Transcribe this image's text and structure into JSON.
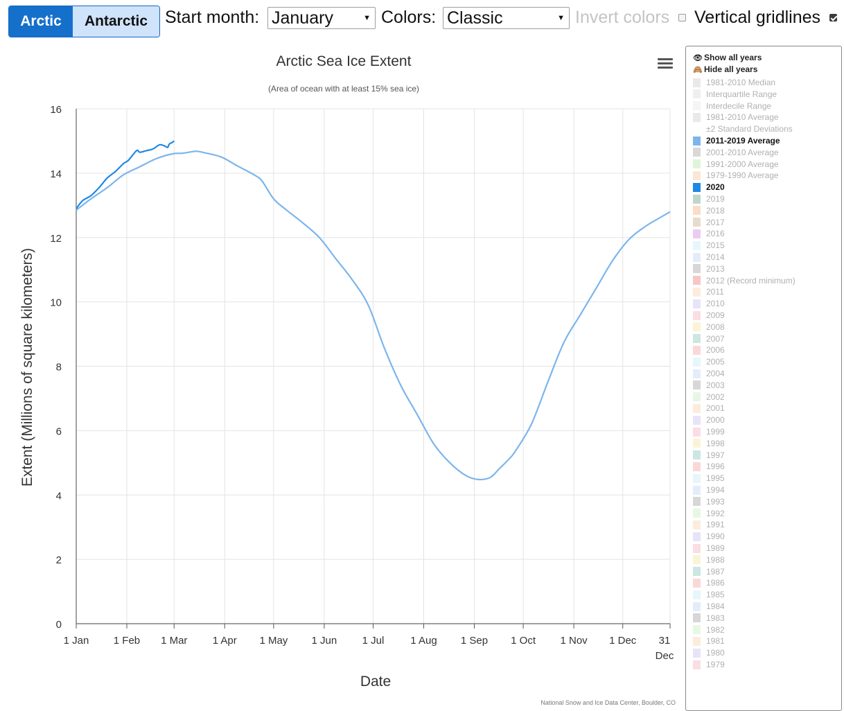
{
  "toolbar": {
    "hemispheres": [
      "Arctic",
      "Antarctic"
    ],
    "selected_hemisphere": "Arctic",
    "start_month_label": "Start month:",
    "start_month_value": "January",
    "colors_label": "Colors:",
    "colors_value": "Classic",
    "invert_colors_label": "Invert colors",
    "invert_colors_checked": false,
    "vertical_gridlines_label": "Vertical gridlines",
    "vertical_gridlines_checked": true
  },
  "colors": {
    "accent": "#1570cc",
    "series_2020": "#1e88e5",
    "series_average": "#7cb5ec",
    "grid": "#e3e3e3"
  },
  "chart_data": {
    "type": "line",
    "title": "Arctic Sea Ice Extent",
    "subtitle": "(Area of ocean with at least 15% sea ice)",
    "xlabel": "Date",
    "ylabel": "Extent (Millions of square kilometers)",
    "ylim": [
      0,
      16
    ],
    "yticks": [
      0,
      2,
      4,
      6,
      8,
      10,
      12,
      14,
      16
    ],
    "xlim": [
      1,
      365
    ],
    "xticks": [
      {
        "day": 1,
        "label": "1 Jan"
      },
      {
        "day": 32,
        "label": "1 Feb"
      },
      {
        "day": 61,
        "label": "1 Mar"
      },
      {
        "day": 92,
        "label": "1 Apr"
      },
      {
        "day": 122,
        "label": "1 May"
      },
      {
        "day": 153,
        "label": "1 Jun"
      },
      {
        "day": 183,
        "label": "1 Jul"
      },
      {
        "day": 214,
        "label": "1 Aug"
      },
      {
        "day": 245,
        "label": "1 Sep"
      },
      {
        "day": 275,
        "label": "1 Oct"
      },
      {
        "day": 306,
        "label": "1 Nov"
      },
      {
        "day": 336,
        "label": "1 Dec"
      },
      {
        "day": 365,
        "label": "31 Dec"
      }
    ],
    "grid": "vertical and horizontal",
    "legend": "right",
    "series": [
      {
        "name": "2011-2019 Average",
        "color": "#7cb5ec",
        "x": [
          1,
          10,
          20,
          30,
          40,
          50,
          60,
          66,
          70,
          75,
          80,
          90,
          100,
          110,
          115,
          122,
          130,
          140,
          150,
          160,
          170,
          180,
          190,
          200,
          210,
          220,
          230,
          240,
          248,
          255,
          260,
          265,
          270,
          280,
          290,
          300,
          310,
          320,
          330,
          340,
          350,
          360,
          365
        ],
        "y": [
          12.85,
          13.2,
          13.55,
          13.95,
          14.2,
          14.45,
          14.6,
          14.62,
          14.65,
          14.68,
          14.63,
          14.5,
          14.22,
          13.95,
          13.75,
          13.2,
          12.85,
          12.45,
          12.0,
          11.35,
          10.7,
          9.9,
          8.55,
          7.4,
          6.5,
          5.6,
          5.0,
          4.6,
          4.48,
          4.55,
          4.8,
          5.05,
          5.35,
          6.2,
          7.5,
          8.75,
          9.6,
          10.45,
          11.3,
          11.95,
          12.35,
          12.65,
          12.8
        ]
      },
      {
        "name": "2020",
        "color": "#1e88e5",
        "x": [
          1,
          5,
          10,
          15,
          20,
          25,
          30,
          33,
          38,
          40,
          44,
          48,
          52,
          55,
          57,
          58,
          60,
          61
        ],
        "y": [
          12.9,
          13.15,
          13.3,
          13.55,
          13.85,
          14.05,
          14.3,
          14.4,
          14.7,
          14.65,
          14.7,
          14.75,
          14.88,
          14.85,
          14.8,
          14.9,
          14.96,
          15.0
        ]
      }
    ],
    "credit": "National Snow and Ice Data Center, Boulder, CO"
  },
  "legend": {
    "show_all_label": "Show all years",
    "hide_all_label": "Hide all years",
    "items": [
      {
        "label": "1981-2010 Median",
        "color": "#cfcfcf",
        "on": false
      },
      {
        "label": "Interquartile Range",
        "color": "#dcdcdc",
        "on": false
      },
      {
        "label": "Interdecile Range",
        "color": "#e8e8e8",
        "on": false
      },
      {
        "label": "1981-2010 Average",
        "color": "#cfcfcf",
        "on": false
      },
      {
        "label": "±2 Standard Deviations",
        "color": "#ffffff",
        "on": false
      },
      {
        "label": "2011-2019 Average",
        "color": "#7cb5ec",
        "on": true
      },
      {
        "label": "2001-2010 Average",
        "color": "#a9a9a9",
        "on": false
      },
      {
        "label": "1991-2000 Average",
        "color": "#b8e6b0",
        "on": false
      },
      {
        "label": "1979-1990 Average",
        "color": "#f8c9a0",
        "on": false
      },
      {
        "label": "2020",
        "color": "#1e88e5",
        "on": true
      },
      {
        "label": "2019",
        "color": "#6fa58c",
        "on": false
      },
      {
        "label": "2018",
        "color": "#f4b183",
        "on": false
      },
      {
        "label": "2017",
        "color": "#c9b18e",
        "on": false
      },
      {
        "label": "2016",
        "color": "#d58be0",
        "on": false
      },
      {
        "label": "2015",
        "color": "#c6eef5",
        "on": false
      },
      {
        "label": "2014",
        "color": "#c2d8f4",
        "on": false
      },
      {
        "label": "2013",
        "color": "#a6a6a6",
        "on": false
      },
      {
        "label": "2012 (Record minimum)",
        "color": "#f08080",
        "on": false
      },
      {
        "label": "2011",
        "color": "#f9d5b0",
        "on": false
      },
      {
        "label": "2010",
        "color": "#c9c0ef",
        "on": false
      },
      {
        "label": "2009",
        "color": "#f6b4c4",
        "on": false
      },
      {
        "label": "2008",
        "color": "#f5e6a6",
        "on": false
      },
      {
        "label": "2007",
        "color": "#8ec7bf",
        "on": false
      },
      {
        "label": "2006",
        "color": "#f6a9a9",
        "on": false
      },
      {
        "label": "2005",
        "color": "#c6eef5",
        "on": false
      },
      {
        "label": "2004",
        "color": "#c2d8f4",
        "on": false
      },
      {
        "label": "2003",
        "color": "#a6a6a6",
        "on": false
      },
      {
        "label": "2002",
        "color": "#c8f0c0",
        "on": false
      },
      {
        "label": "2001",
        "color": "#f9d5b0",
        "on": false
      },
      {
        "label": "2000",
        "color": "#c9c0ef",
        "on": false
      },
      {
        "label": "1999",
        "color": "#f6b4c4",
        "on": false
      },
      {
        "label": "1998",
        "color": "#f5e6a6",
        "on": false
      },
      {
        "label": "1997",
        "color": "#8ec7bf",
        "on": false
      },
      {
        "label": "1996",
        "color": "#f6a9a9",
        "on": false
      },
      {
        "label": "1995",
        "color": "#c6eef5",
        "on": false
      },
      {
        "label": "1994",
        "color": "#c2d8f4",
        "on": false
      },
      {
        "label": "1993",
        "color": "#a6a6a6",
        "on": false
      },
      {
        "label": "1992",
        "color": "#c8f0c0",
        "on": false
      },
      {
        "label": "1991",
        "color": "#f9d5b0",
        "on": false
      },
      {
        "label": "1990",
        "color": "#c9c0ef",
        "on": false
      },
      {
        "label": "1989",
        "color": "#f6b4c4",
        "on": false
      },
      {
        "label": "1988",
        "color": "#f5e6a6",
        "on": false
      },
      {
        "label": "1987",
        "color": "#8ec7bf",
        "on": false
      },
      {
        "label": "1986",
        "color": "#f6a9a9",
        "on": false
      },
      {
        "label": "1985",
        "color": "#c6eef5",
        "on": false
      },
      {
        "label": "1984",
        "color": "#c2d8f4",
        "on": false
      },
      {
        "label": "1983",
        "color": "#a6a6a6",
        "on": false
      },
      {
        "label": "1982",
        "color": "#c8f0c0",
        "on": false
      },
      {
        "label": "1981",
        "color": "#f9d5b0",
        "on": false
      },
      {
        "label": "1980",
        "color": "#c9c0ef",
        "on": false
      },
      {
        "label": "1979",
        "color": "#f6b4c4",
        "on": false
      }
    ]
  }
}
